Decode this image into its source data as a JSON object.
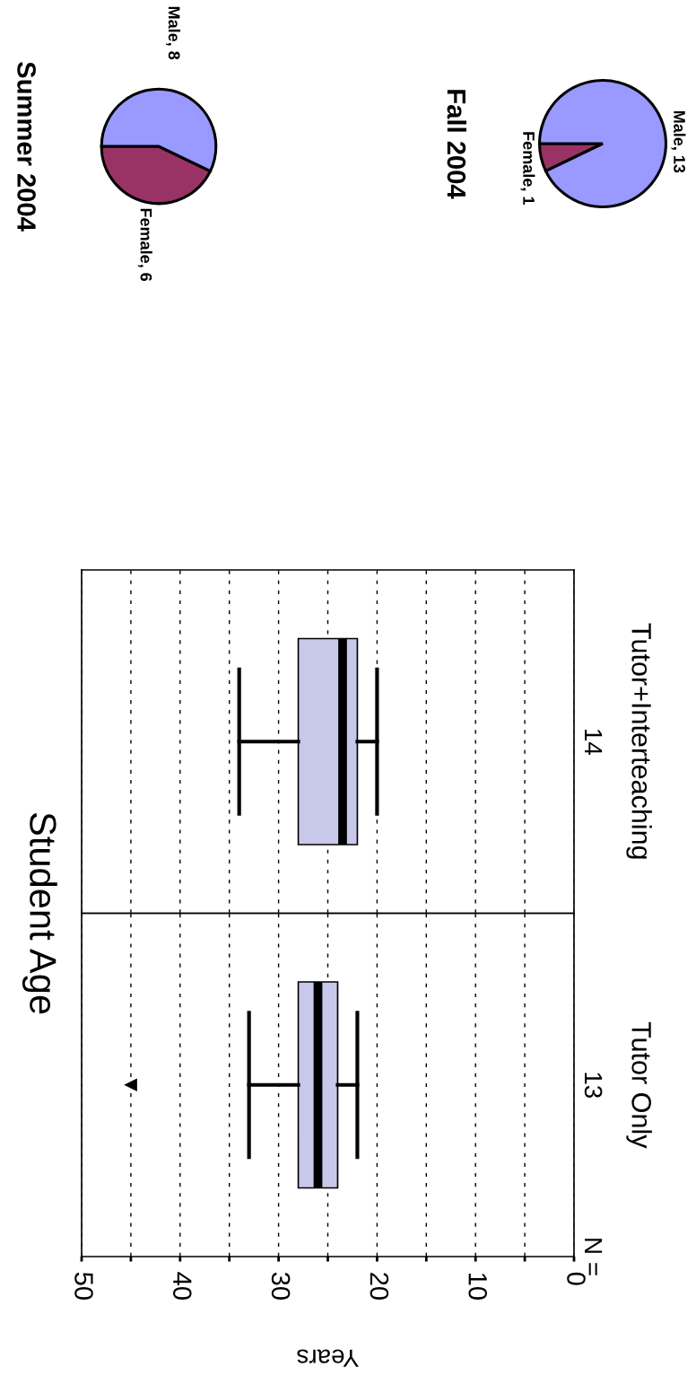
{
  "chart_data": [
    {
      "type": "box",
      "title": "Student Age",
      "xlabel": "Years",
      "orientation": "horizontal",
      "categories": [
        "Tutor+Interteaching",
        "Tutor Only"
      ],
      "boxes": [
        {
          "low": 20,
          "q1": 22,
          "median": 23.5,
          "q3": 28,
          "high": 34
        },
        {
          "low": 22,
          "q1": 24,
          "median": 26,
          "q3": 28,
          "high": 33,
          "outliers": [
            45
          ]
        }
      ],
      "color": "#c8c8ea",
      "xlim": [
        50,
        0
      ],
      "xticks": [
        50,
        {
          "value": 45,
          "label": null
        },
        40,
        {
          "value": 35,
          "label": null
        },
        30,
        {
          "value": 25,
          "label": null
        },
        20,
        {
          "value": 15,
          "label": null
        },
        10,
        {
          "value": 5,
          "label": null
        },
        0
      ],
      "grid": "x",
      "line_style": "dashed",
      "marker": "triangle",
      "annotations": [
        "N =",
        "14",
        "13"
      ]
    },
    {
      "type": "pie",
      "title": "Summer 2004",
      "categories": [
        "Female",
        "Male"
      ],
      "values": [
        6,
        8
      ],
      "colors": [
        "#993366",
        "#9999ff"
      ],
      "value_labels": [
        ", 6",
        ", 8"
      ]
    },
    {
      "type": "pie",
      "title": "Fall 2004",
      "categories": [
        "Female",
        "Male"
      ],
      "values": [
        1,
        13
      ],
      "colors": [
        "#993366",
        "#9999ff"
      ],
      "value_labels": [
        ", 1",
        ", 13"
      ]
    }
  ]
}
